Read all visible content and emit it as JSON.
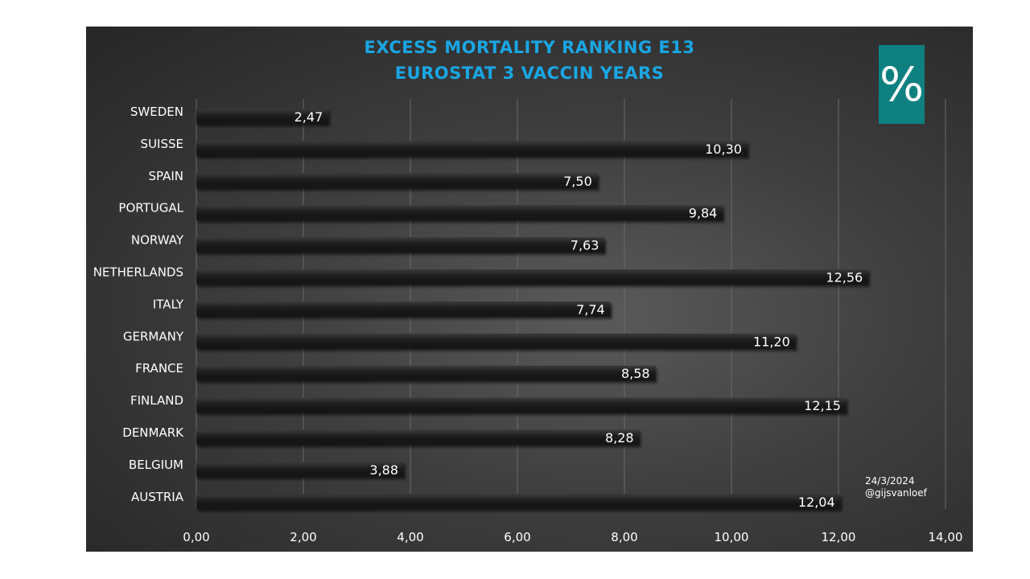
{
  "chart_data": {
    "type": "bar",
    "orientation": "horizontal",
    "title": "EXCESS MORTALITY RANKING E13",
    "subtitle": "EUROSTAT 3 VACCIN YEARS",
    "categories": [
      "SWEDEN",
      "SUISSE",
      "SPAIN",
      "PORTUGAL",
      "NORWAY",
      "NETHERLANDS",
      "ITALY",
      "GERMANY",
      "FRANCE",
      "FINLAND",
      "DENMARK",
      "BELGIUM",
      "AUSTRIA"
    ],
    "values": [
      2.47,
      10.3,
      7.5,
      9.84,
      7.63,
      12.56,
      7.74,
      11.2,
      8.58,
      12.15,
      8.28,
      3.88,
      12.04
    ],
    "data_labels": [
      "2,47",
      "10,30",
      "7,50",
      "9,84",
      "7,63",
      "12,56",
      "7,74",
      "11,20",
      "8,58",
      "12,15",
      "8,28",
      "3,88",
      "12,04"
    ],
    "x_ticks": [
      0,
      2,
      4,
      6,
      8,
      10,
      12,
      14
    ],
    "x_tick_labels": [
      "0,00",
      "2,00",
      "4,00",
      "6,00",
      "8,00",
      "10,00",
      "12,00",
      "14,00"
    ],
    "xlim": [
      0,
      14
    ],
    "xlabel": "",
    "ylabel": "",
    "grid": true,
    "legend": "none",
    "colors": {
      "title": "#1aa6e4",
      "bar": "#1e1e1e",
      "gridline": "#6a6a6a",
      "text": "#ffffff",
      "badge": "#0f8080"
    }
  },
  "badge": {
    "symbol": "%"
  },
  "credit": {
    "date": "24/3/2024",
    "handle": "@gijsvanloef"
  }
}
